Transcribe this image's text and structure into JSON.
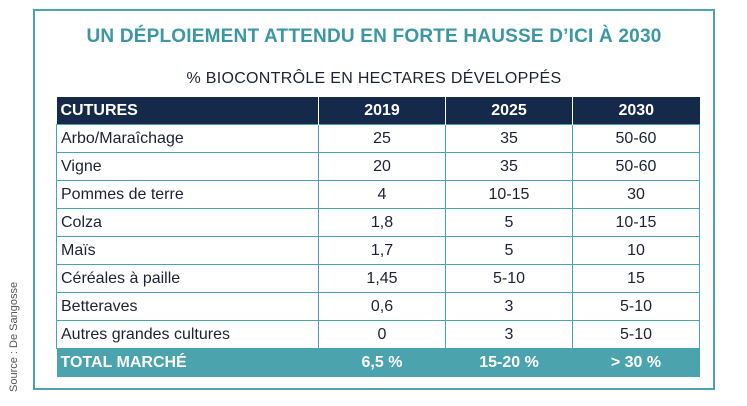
{
  "title": "UN DÉPLOIEMENT ATTENDU EN FORTE HAUSSE D’ICI À 2030",
  "subtitle": "% BIOCONTRÔLE EN HECTARES DÉVELOPPÉS",
  "source": "Source : De Sangosse",
  "colors": {
    "accent": "#4aa3ad",
    "header_bg": "#15294a",
    "title_color": "#3b97a3"
  },
  "table": {
    "headers": [
      "CUTURES",
      "2019",
      "2025",
      "2030"
    ],
    "rows": [
      [
        "Arbo/Maraîchage",
        "25",
        "35",
        "50-60"
      ],
      [
        "Vigne",
        "20",
        "35",
        "50-60"
      ],
      [
        "Pommes de terre",
        "4",
        "10-15",
        "30"
      ],
      [
        "Colza",
        "1,8",
        "5",
        "10-15"
      ],
      [
        "Maïs",
        "1,7",
        "5",
        "10"
      ],
      [
        "Céréales à paille",
        "1,45",
        "5-10",
        "15"
      ],
      [
        "Betteraves",
        "0,6",
        "3",
        "5-10"
      ],
      [
        "Autres grandes cultures",
        "0",
        "3",
        "5-10"
      ]
    ],
    "total": [
      "TOTAL MARCHÉ",
      "6,5 %",
      "15-20 %",
      "> 30 %"
    ]
  }
}
